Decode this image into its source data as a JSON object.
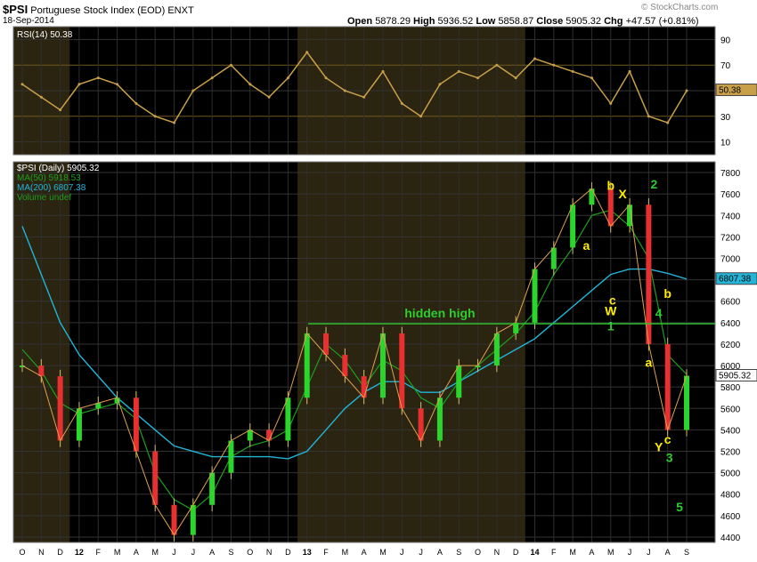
{
  "header": {
    "symbol": "$PSI",
    "name": "Portuguese Stock Index (EOD)",
    "exchange": "ENXT",
    "date": "18-Sep-2014",
    "open_label": "Open",
    "open": "5878.29",
    "high_label": "High",
    "high": "5936.52",
    "low_label": "Low",
    "low": "5858.87",
    "close_label": "Close",
    "close": "5905.32",
    "chg_label": "Chg",
    "chg": "+47.57 (+0.81%)",
    "watermark": "© StockCharts.com"
  },
  "rsi_panel": {
    "legend": "RSI(14) 50.38",
    "last_value_label": "50.38",
    "ticks": [
      90,
      70,
      50,
      30,
      10
    ],
    "color": "#c8a04a"
  },
  "price_panel": {
    "legend": [
      {
        "text": "$PSI (Daily) 5905.32",
        "color": "#ffffff"
      },
      {
        "text": "MA(50) 5918.53",
        "color": "#1f9e1f"
      },
      {
        "text": "MA(200) 6807.38",
        "color": "#22b5d8"
      },
      {
        "text": "Volume undef",
        "color": "#1f9e1f"
      }
    ],
    "ticks": [
      7800,
      7600,
      7400,
      7200,
      7000,
      6800,
      6600,
      6400,
      6200,
      6000,
      5800,
      5600,
      5400,
      5200,
      5000,
      4800,
      4600,
      4400
    ],
    "ma200_label": "6807.38",
    "close_label": "5905.32"
  },
  "x_labels": [
    "O",
    "N",
    "D",
    "12",
    "F",
    "M",
    "A",
    "M",
    "J",
    "J",
    "A",
    "S",
    "O",
    "N",
    "D",
    "13",
    "F",
    "M",
    "A",
    "M",
    "J",
    "J",
    "A",
    "S",
    "O",
    "N",
    "D",
    "14",
    "F",
    "M",
    "A",
    "M",
    "J",
    "J",
    "A",
    "S"
  ],
  "annotations": [
    {
      "text": "hidden high",
      "color": "#2ecc2e",
      "value": 6390
    },
    {
      "text": "a",
      "color": "#ffee00",
      "label_value": 7080
    },
    {
      "text": "b",
      "color": "#ffee00",
      "label_value": 7640
    },
    {
      "text": "X",
      "color": "#ffee00",
      "label_value": 7560
    },
    {
      "text": "2",
      "color": "#2ecc2e",
      "label_value": 7650
    },
    {
      "text": "c",
      "color": "#ffee00",
      "label_value": 6570
    },
    {
      "text": "W",
      "color": "#ffee00",
      "label_value": 6470
    },
    {
      "text": "1",
      "color": "#2ecc2e",
      "label_value": 6330
    },
    {
      "text": "4",
      "color": "#2ecc2e",
      "label_value": 6450
    },
    {
      "text": "b",
      "color": "#ffee00",
      "label_value": 6630
    },
    {
      "text": "a",
      "color": "#ffee00",
      "label_value": 5990
    },
    {
      "text": "c",
      "color": "#ffee00",
      "label_value": 5270
    },
    {
      "text": "Y",
      "color": "#ffee00",
      "label_value": 5200
    },
    {
      "text": "3",
      "color": "#2ecc2e",
      "label_value": 5100
    },
    {
      "text": "5",
      "color": "#2ecc2e",
      "label_value": 4640
    }
  ],
  "chart_data": {
    "type": "line",
    "title": "$PSI Portuguese Stock Index (EOD)",
    "x": [
      "2011-10",
      "2011-11",
      "2011-12",
      "2012-01",
      "2012-02",
      "2012-03",
      "2012-04",
      "2012-05",
      "2012-06",
      "2012-07",
      "2012-08",
      "2012-09",
      "2012-10",
      "2012-11",
      "2012-12",
      "2013-01",
      "2013-02",
      "2013-03",
      "2013-04",
      "2013-05",
      "2013-06",
      "2013-07",
      "2013-08",
      "2013-09",
      "2013-10",
      "2013-11",
      "2013-12",
      "2014-01",
      "2014-02",
      "2014-03",
      "2014-04",
      "2014-05",
      "2014-06",
      "2014-07",
      "2014-08",
      "2014-09"
    ],
    "series": [
      {
        "name": "$PSI",
        "values": [
          6000,
          5900,
          5300,
          5600,
          5650,
          5700,
          5200,
          4700,
          4420,
          4700,
          5000,
          5300,
          5400,
          5300,
          5700,
          6300,
          6100,
          5900,
          5700,
          6300,
          5600,
          5300,
          5700,
          6000,
          6000,
          6300,
          6400,
          6900,
          7100,
          7500,
          7650,
          7300,
          7500,
          6200,
          5400,
          5905
        ]
      },
      {
        "name": "MA(50)",
        "values": [
          6150,
          5950,
          5650,
          5550,
          5600,
          5650,
          5500,
          5000,
          4750,
          4650,
          4800,
          5150,
          5250,
          5300,
          5400,
          5800,
          6200,
          6050,
          5800,
          6050,
          5950,
          5700,
          5600,
          5850,
          6000,
          6150,
          6300,
          6500,
          6850,
          7100,
          7400,
          7450,
          7300,
          7000,
          6100,
          5918
        ]
      },
      {
        "name": "MA(200)",
        "values": [
          7300,
          6850,
          6400,
          6100,
          5900,
          5700,
          5550,
          5400,
          5250,
          5200,
          5150,
          5150,
          5150,
          5150,
          5130,
          5200,
          5400,
          5600,
          5750,
          5850,
          5850,
          5750,
          5750,
          5850,
          5950,
          6050,
          6150,
          6250,
          6400,
          6550,
          6700,
          6850,
          6900,
          6900,
          6860,
          6807
        ]
      },
      {
        "name": "RSI(14)",
        "values": [
          55,
          45,
          35,
          55,
          60,
          55,
          40,
          30,
          25,
          50,
          60,
          70,
          55,
          45,
          60,
          80,
          60,
          50,
          45,
          65,
          40,
          30,
          55,
          65,
          60,
          70,
          60,
          75,
          70,
          65,
          60,
          40,
          65,
          30,
          25,
          50
        ]
      }
    ],
    "ylim": [
      4350,
      7900
    ],
    "rsi_ylim": [
      0,
      100
    ],
    "ylabel": "",
    "xlabel": "",
    "grid": true,
    "legend": "top-left"
  }
}
